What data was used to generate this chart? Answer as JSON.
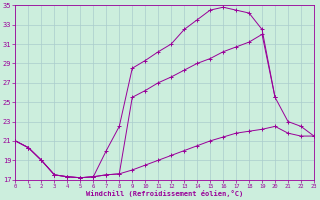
{
  "xlabel": "Windchill (Refroidissement éolien,°C)",
  "bg_color": "#cceedd",
  "grid_color": "#aacccc",
  "line_color": "#990099",
  "xlim": [
    0,
    23
  ],
  "ylim": [
    17,
    35
  ],
  "xticks": [
    0,
    1,
    2,
    3,
    4,
    5,
    6,
    7,
    8,
    9,
    10,
    11,
    12,
    13,
    14,
    15,
    16,
    17,
    18,
    19,
    20,
    21,
    22,
    23
  ],
  "yticks": [
    17,
    19,
    21,
    23,
    25,
    27,
    29,
    31,
    33,
    35
  ],
  "line1_x": [
    0,
    1,
    2,
    3,
    4,
    5,
    6,
    7,
    8,
    9,
    10,
    11,
    12,
    13,
    14,
    15,
    16,
    17,
    18,
    19,
    20,
    21,
    22,
    23
  ],
  "line1_y": [
    21,
    20.3,
    19,
    17.5,
    17.3,
    17.2,
    17.3,
    17.5,
    17.6,
    18.0,
    18.5,
    19.0,
    19.5,
    20.0,
    20.5,
    21.0,
    21.4,
    21.8,
    22.0,
    22.2,
    22.5,
    21.8,
    21.5,
    21.5
  ],
  "line2_x": [
    0,
    1,
    2,
    3,
    4,
    5,
    6,
    7,
    8,
    9,
    10,
    11,
    12,
    13,
    14,
    15,
    16,
    17,
    18,
    19,
    20,
    21,
    22,
    23
  ],
  "line2_y": [
    21,
    20.3,
    19,
    17.5,
    17.3,
    17.2,
    17.3,
    20.0,
    22.5,
    28.5,
    29.3,
    30.2,
    31.0,
    32.5,
    33.5,
    34.5,
    34.8,
    34.5,
    34.2,
    32.5,
    25.5,
    23.0,
    22.5,
    21.5
  ],
  "line3_x": [
    0,
    1,
    2,
    3,
    4,
    5,
    6,
    7,
    8,
    9,
    10,
    11,
    12,
    13,
    14,
    15,
    16,
    17,
    18,
    19,
    20
  ],
  "line3_y": [
    21,
    20.3,
    19,
    17.5,
    17.3,
    17.2,
    17.3,
    17.5,
    17.6,
    25.5,
    26.2,
    27.0,
    27.6,
    28.3,
    29.0,
    29.5,
    30.2,
    30.7,
    31.2,
    32.0,
    25.5
  ]
}
